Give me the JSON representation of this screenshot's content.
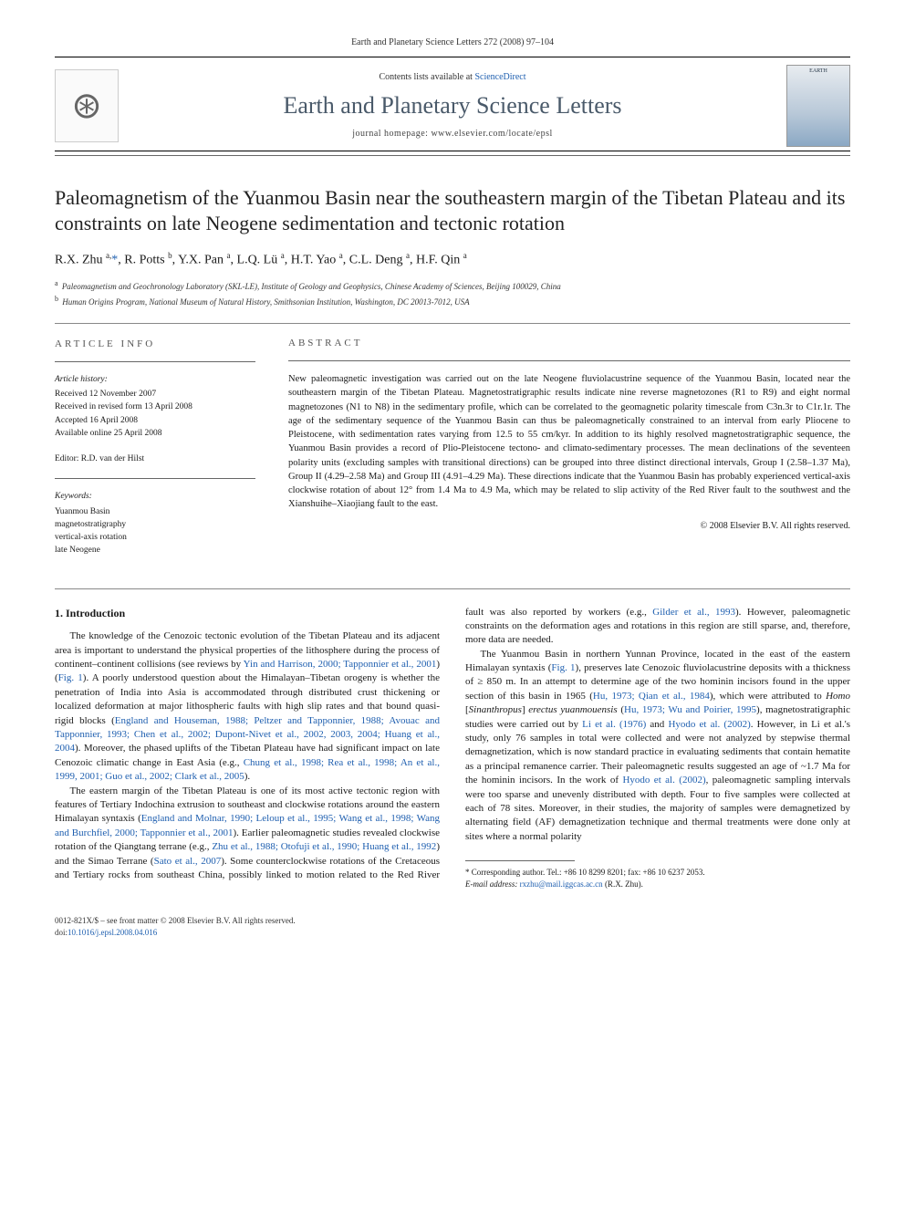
{
  "meta": {
    "citation": "Earth and Planetary Science Letters 272 (2008) 97–104"
  },
  "banner": {
    "contents_prefix": "Contents lists available at ",
    "contents_link": "ScienceDirect",
    "journal_title": "Earth and Planetary Science Letters",
    "homepage_prefix": "journal homepage: ",
    "homepage": "www.elsevier.com/locate/epsl",
    "publisher_logo_alt": "ELSEVIER",
    "cover_label": "EARTH"
  },
  "article": {
    "title": "Paleomagnetism of the Yuanmou Basin near the southeastern margin of the Tibetan Plateau and its constraints on late Neogene sedimentation and tectonic rotation",
    "authors_html": "R.X. Zhu <sup>a,</sup><a href='#'>*</a>, R. Potts <sup>b</sup>, Y.X. Pan <sup>a</sup>, L.Q. Lü <sup>a</sup>, H.T. Yao <sup>a</sup>, C.L. Deng <sup>a</sup>, H.F. Qin <sup>a</sup>",
    "affiliations": [
      {
        "sup": "a",
        "text": "Paleomagnetism and Geochronology Laboratory (SKL-LE), Institute of Geology and Geophysics, Chinese Academy of Sciences, Beijing 100029, China"
      },
      {
        "sup": "b",
        "text": "Human Origins Program, National Museum of Natural History, Smithsonian Institution, Washington, DC 20013-7012, USA"
      }
    ]
  },
  "info": {
    "label": "ARTICLE INFO",
    "history_label": "Article history:",
    "history": [
      "Received 12 November 2007",
      "Received in revised form 13 April 2008",
      "Accepted 16 April 2008",
      "Available online 25 April 2008"
    ],
    "editor_label": "Editor:",
    "editor": "R.D. van der Hilst",
    "keywords_label": "Keywords:",
    "keywords": [
      "Yuanmou Basin",
      "magnetostratigraphy",
      "vertical-axis rotation",
      "late Neogene"
    ]
  },
  "abstract": {
    "label": "ABSTRACT",
    "text": "New paleomagnetic investigation was carried out on the late Neogene fluviolacustrine sequence of the Yuanmou Basin, located near the southeastern margin of the Tibetan Plateau. Magnetostratigraphic results indicate nine reverse magnetozones (R1 to R9) and eight normal magnetozones (N1 to N8) in the sedimentary profile, which can be correlated to the geomagnetic polarity timescale from C3n.3r to C1r.1r. The age of the sedimentary sequence of the Yuanmou Basin can thus be paleomagnetically constrained to an interval from early Pliocene to Pleistocene, with sedimentation rates varying from 12.5 to 55 cm/kyr. In addition to its highly resolved magnetostratigraphic sequence, the Yuanmou Basin provides a record of Plio-Pleistocene tectono- and climato-sedimentary processes. The mean declinations of the seventeen polarity units (excluding samples with transitional directions) can be grouped into three distinct directional intervals, Group I (2.58–1.37 Ma), Group II (4.29–2.58 Ma) and Group III (4.91–4.29 Ma). These directions indicate that the Yuanmou Basin has probably experienced vertical-axis clockwise rotation of about 12° from 1.4 Ma to 4.9 Ma, which may be related to slip activity of the Red River fault to the southwest and the Xianshuihe–Xiaojiang fault to the east.",
    "copyright": "© 2008 Elsevier B.V. All rights reserved."
  },
  "body": {
    "heading": "1. Introduction",
    "p1_a": "The knowledge of the Cenozoic tectonic evolution of the Tibetan Plateau and its adjacent area is important to understand the physical properties of the lithosphere during the process of continent–continent collisions (see reviews by ",
    "p1_link1": "Yin and Harrison, 2000; Tapponnier et al., 2001",
    "p1_b": ") (",
    "p1_link2": "Fig. 1",
    "p1_c": "). A poorly understood question about the Himalayan–Tibetan orogeny is whether the penetration of India into Asia is accommodated through distributed crust thickening or localized deformation at major lithospheric faults with high slip rates and that bound quasi-rigid blocks (",
    "p1_link3": "England and Houseman, 1988; Peltzer and Tapponnier, 1988; Avouac and Tapponnier, 1993; Chen et al., 2002; Dupont-Nivet et al., 2002, 2003, 2004; Huang et al., 2004",
    "p1_d": "). Moreover, the phased uplifts of the Tibetan Plateau have had significant impact on late Cenozoic climatic change in East Asia (e.g., ",
    "p1_link4": "Chung et al., 1998; Rea et al., 1998; An et al., 1999, 2001; Guo et al., 2002; Clark et al., 2005",
    "p1_e": ").",
    "p2_a": "The eastern margin of the Tibetan Plateau is one of its most active tectonic region with features of Tertiary Indochina extrusion to southeast and clockwise rotations around the eastern Himalayan syntaxis (",
    "p2_link1": "England and Molnar, 1990; Leloup et al., 1995; Wang et al., 1998; Wang and Burchfiel, 2000; Tapponnier et al., 2001",
    "p2_b": "). Earlier paleomagnetic studies revealed clockwise rotation of the Qiangtang terrane (e.g., ",
    "p2_link2": "Zhu et al., 1988; Otofuji et al., 1990; Huang et al., 1992",
    "p2_c": ") and the Simao Terrane (",
    "p2_link3": "Sato et al., 2007",
    "p2_d": "). Some counterclockwise rotations of the Cretaceous and Tertiary rocks from southeast China, possibly linked to motion related to the Red River fault was also reported by workers (e.g., ",
    "p2_link4": "Gilder et al., 1993",
    "p2_e": "). However, paleomagnetic constraints on the deformation ages and rotations in this region are still sparse, and, therefore, more data are needed.",
    "p3_a": "The Yuanmou Basin in northern Yunnan Province, located in the east of the eastern Himalayan syntaxis (",
    "p3_link1": "Fig. 1",
    "p3_b": "), preserves late Cenozoic fluviolacustrine deposits with a thickness of ≥ 850 m. In an attempt to determine age of the two hominin incisors found in the upper section of this basin in 1965 (",
    "p3_link2": "Hu, 1973; Qian et al., 1984",
    "p3_c": "), which were attributed to ",
    "p3_taxon1": "Homo",
    "p3_d": " [",
    "p3_taxon2": "Sinanthropus",
    "p3_e": "] ",
    "p3_taxon3": "erectus yuanmouensis",
    "p3_f": " (",
    "p3_link3": "Hu, 1973; Wu and Poirier, 1995",
    "p3_g": "), magnetostratigraphic studies were carried out by ",
    "p3_link4": "Li et al. (1976)",
    "p3_h": " and ",
    "p3_link5": "Hyodo et al. (2002)",
    "p3_i": ". However, in Li et al.'s study, only 76 samples in total were collected and were not analyzed by stepwise thermal demagnetization, which is now standard practice in evaluating sediments that contain hematite as a principal remanence carrier. Their paleomagnetic results suggested an age of ~1.7 Ma for the hominin incisors. In the work of ",
    "p3_link6": "Hyodo et al. (2002)",
    "p3_j": ", paleomagnetic sampling intervals were too sparse and unevenly distributed with depth. Four to five samples were collected at each of 78 sites. Moreover, in their studies, the majority of samples were demagnetized by alternating field (AF) demagnetization technique and thermal treatments were done only at sites where a normal polarity"
  },
  "footnote": {
    "corr_label": "* Corresponding author. Tel.: +86 10 8299 8201; fax: +86 10 6237 2053.",
    "email_label": "E-mail address:",
    "email": "rxzhu@mail.iggcas.ac.cn",
    "email_who": "(R.X. Zhu)."
  },
  "footer": {
    "issn_line": "0012-821X/$ – see front matter © 2008 Elsevier B.V. All rights reserved.",
    "doi_prefix": "doi:",
    "doi": "10.1016/j.epsl.2008.04.016"
  },
  "colors": {
    "link": "#2060b0",
    "journal_title": "#4a5a6a",
    "rule": "#888888"
  }
}
